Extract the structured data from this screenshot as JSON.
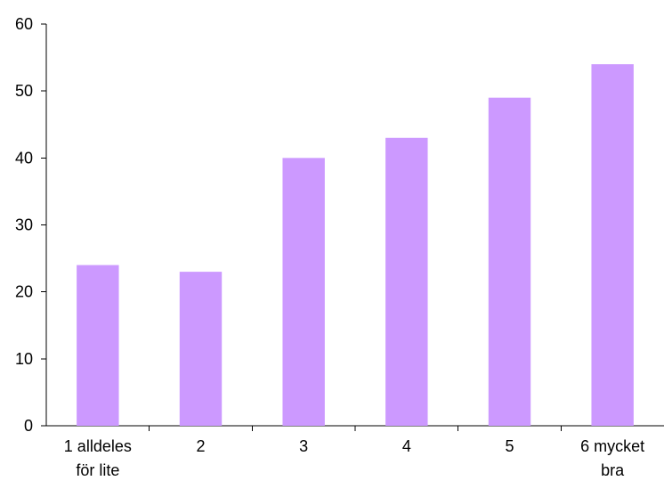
{
  "chart_data": {
    "type": "bar",
    "title": "",
    "xlabel": "",
    "ylabel": "",
    "categories": [
      [
        "1 alldeles",
        "för lite"
      ],
      [
        "2"
      ],
      [
        "3"
      ],
      [
        "4"
      ],
      [
        "5"
      ],
      [
        "6 mycket",
        "bra"
      ]
    ],
    "values": [
      24,
      23,
      40,
      43,
      49,
      54
    ],
    "ylim": [
      0,
      60
    ],
    "yticks": [
      0,
      10,
      20,
      30,
      40,
      50,
      60
    ],
    "grid": false,
    "legend": "none",
    "bar_color": "#cc99ff"
  }
}
